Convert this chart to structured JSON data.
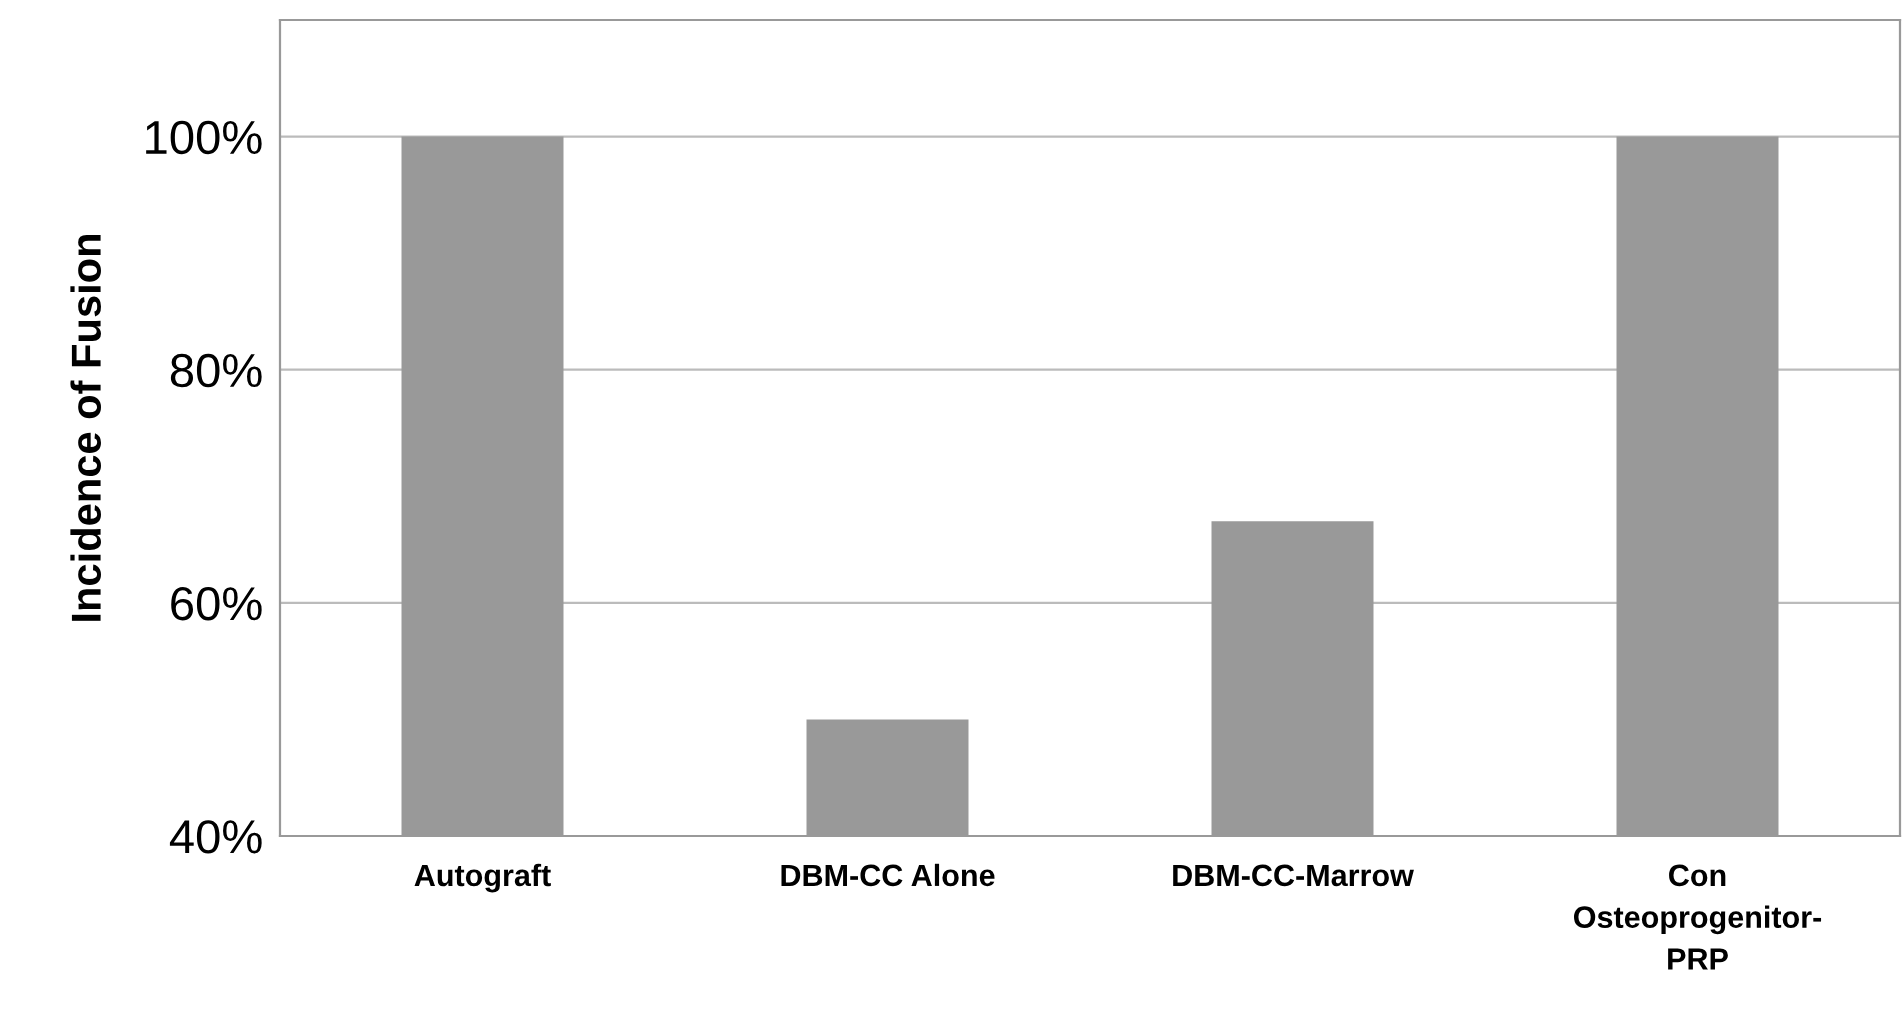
{
  "chart_data": {
    "type": "bar",
    "ylabel": "Incidence of Fusion",
    "categories": [
      "Autograft",
      "DBM-CC Alone",
      "DBM-CC-Marrow",
      "Con\nOsteoprogenitor-\nPRP"
    ],
    "values": [
      100,
      50,
      67,
      100
    ],
    "color": "#999999",
    "ylim": [
      40,
      110
    ],
    "yticks": [
      {
        "value": 40,
        "label": "40%"
      },
      {
        "value": 60,
        "label": "60%"
      },
      {
        "value": 80,
        "label": "80%"
      },
      {
        "value": 100,
        "label": "100%"
      }
    ],
    "grid": "y",
    "legend": false
  }
}
